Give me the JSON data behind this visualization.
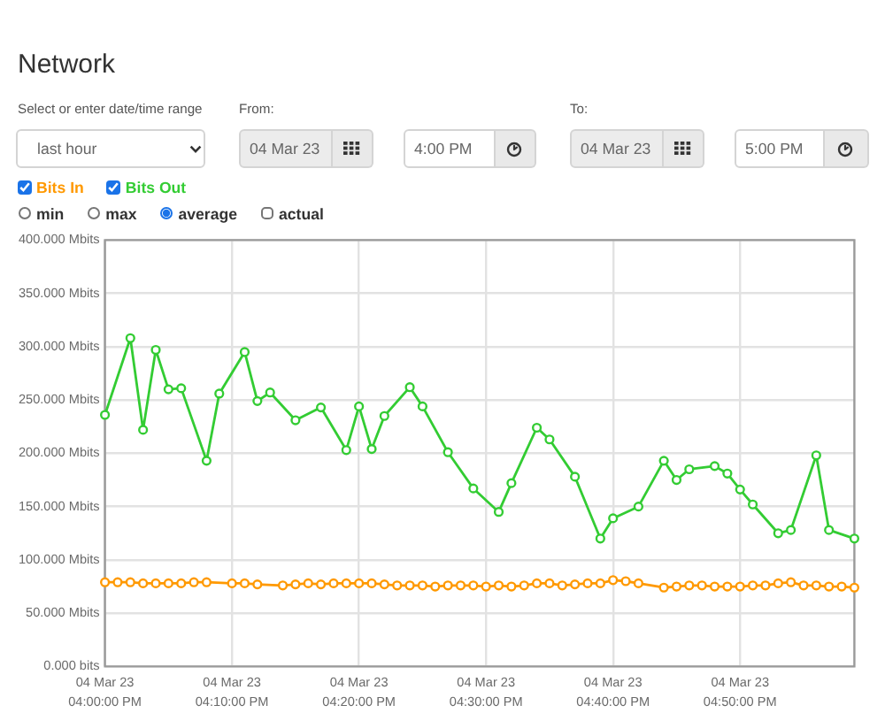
{
  "chart_data": {
    "type": "line",
    "title": "Network",
    "annotations": [
      "Select or enter date/time range",
      "last hour",
      "From:",
      "04 Mar 23",
      "4:00 PM",
      "To:",
      "04 Mar 23",
      "5:00 PM",
      "min",
      "max",
      "average",
      "actual"
    ],
    "series": [
      {
        "name": "Bits In",
        "color": "#ff9900",
        "x": [
          "--03-04T16:00",
          "--03-04T16:01",
          "--03-04T16:02",
          "--03-04T16:03",
          "--03-04T16:04",
          "--03-04T16:05",
          "--03-04T16:06",
          "--03-04T16:07",
          "--03-04T16:08",
          "--03-04T16:10",
          "--03-04T16:11",
          "--03-04T16:12",
          "--03-04T16:14",
          "--03-04T16:15",
          "--03-04T16:16",
          "--03-04T16:17",
          "--03-04T16:18",
          "--03-04T16:19",
          "--03-04T16:20",
          "--03-04T16:21",
          "--03-04T16:22",
          "--03-04T16:23",
          "--03-04T16:24",
          "--03-04T16:25",
          "--03-04T16:26",
          "--03-04T16:27",
          "--03-04T16:28",
          "--03-04T16:29",
          "--03-04T16:30",
          "--03-04T16:31",
          "--03-04T16:32",
          "--03-04T16:33",
          "--03-04T16:34",
          "--03-04T16:35",
          "--03-04T16:36",
          "--03-04T16:37",
          "--03-04T16:38",
          "--03-04T16:39",
          "--03-04T16:40",
          "--03-04T16:41",
          "--03-04T16:42",
          "--03-04T16:44",
          "--03-04T16:45",
          "--03-04T16:46",
          "--03-04T16:47",
          "--03-04T16:48",
          "--03-04T16:49",
          "--03-04T16:50",
          "--03-04T16:51",
          "--03-04T16:52",
          "--03-04T16:53",
          "--03-04T16:54",
          "--03-04T16:55",
          "--03-04T16:56",
          "--03-04T16:57",
          "--03-04T16:58",
          "--03-04T16:59"
        ],
        "values": [
          79,
          79,
          79,
          78,
          78,
          78,
          78,
          79,
          79,
          78,
          78,
          77,
          76,
          77,
          78,
          77,
          78,
          78,
          78,
          78,
          77,
          76,
          76,
          76,
          75,
          76,
          76,
          76,
          75,
          76,
          75,
          76,
          78,
          78,
          76,
          77,
          78,
          78,
          81,
          80,
          78,
          74,
          75,
          76,
          76,
          75,
          75,
          75,
          76,
          76,
          78,
          79,
          76,
          76,
          75,
          75,
          74
        ]
      },
      {
        "name": "Bits Out",
        "color": "#33cc33",
        "x": [
          "--03-04T16:00",
          "--03-04T16:02",
          "--03-04T16:03",
          "--03-04T16:04",
          "--03-04T16:05",
          "--03-04T16:06",
          "--03-04T16:08",
          "--03-04T16:09",
          "--03-04T16:11",
          "--03-04T16:12",
          "--03-04T16:13",
          "--03-04T16:15",
          "--03-04T16:17",
          "--03-04T16:19",
          "--03-04T16:20",
          "--03-04T16:21",
          "--03-04T16:22",
          "--03-04T16:24",
          "--03-04T16:25",
          "--03-04T16:27",
          "--03-04T16:29",
          "--03-04T16:31",
          "--03-04T16:32",
          "--03-04T16:34",
          "--03-04T16:35",
          "--03-04T16:37",
          "--03-04T16:39",
          "--03-04T16:40",
          "--03-04T16:42",
          "--03-04T16:44",
          "--03-04T16:45",
          "--03-04T16:46",
          "--03-04T16:48",
          "--03-04T16:49",
          "--03-04T16:50",
          "--03-04T16:51",
          "--03-04T16:53",
          "--03-04T16:54",
          "--03-04T16:56",
          "--03-04T16:57",
          "--03-04T16:59"
        ],
        "values": [
          236,
          308,
          222,
          297,
          260,
          261,
          193,
          256,
          295,
          249,
          257,
          231,
          243,
          203,
          244,
          204,
          235,
          262,
          244,
          201,
          167,
          145,
          172,
          224,
          213,
          178,
          120,
          139,
          150,
          193,
          175,
          185,
          188,
          181,
          166,
          152,
          125,
          128,
          198,
          128,
          120
        ]
      }
    ],
    "xlim": [
      "--03-04T16:00",
      "--03-04T16:59"
    ],
    "xticks": [
      {
        "value": "--03-04T16:00",
        "label": "04 Mar 23\n04:00:00 PM"
      },
      {
        "value": "--03-04T16:10",
        "label": "04 Mar 23\n04:10:00 PM"
      },
      {
        "value": "--03-04T16:20",
        "label": "04 Mar 23\n04:20:00 PM"
      },
      {
        "value": "--03-04T16:30",
        "label": "04 Mar 23\n04:30:00 PM"
      },
      {
        "value": "--03-04T16:40",
        "label": "04 Mar 23\n04:40:00 PM"
      },
      {
        "value": "--03-04T16:50",
        "label": "04 Mar 23\n04:50:00 PM"
      }
    ],
    "ylim": [
      0,
      400
    ],
    "yticks": [
      {
        "value": 0,
        "label": "0.000 bits"
      },
      {
        "value": 50,
        "label": "50.000 Mbits"
      },
      {
        "value": 100,
        "label": "100.000 Mbits"
      },
      {
        "value": 150,
        "label": "150.000 Mbits"
      },
      {
        "value": 200,
        "label": "200.000 Mbits"
      },
      {
        "value": 250,
        "label": "250.000 Mbits"
      },
      {
        "value": 300,
        "label": "300.000 Mbits"
      },
      {
        "value": 350,
        "label": "350.000 Mbits"
      },
      {
        "value": 400,
        "label": "400.000 Mbits"
      }
    ],
    "grid": true,
    "legend": "top left",
    "marker": "circle",
    "line_style": "solid"
  }
}
